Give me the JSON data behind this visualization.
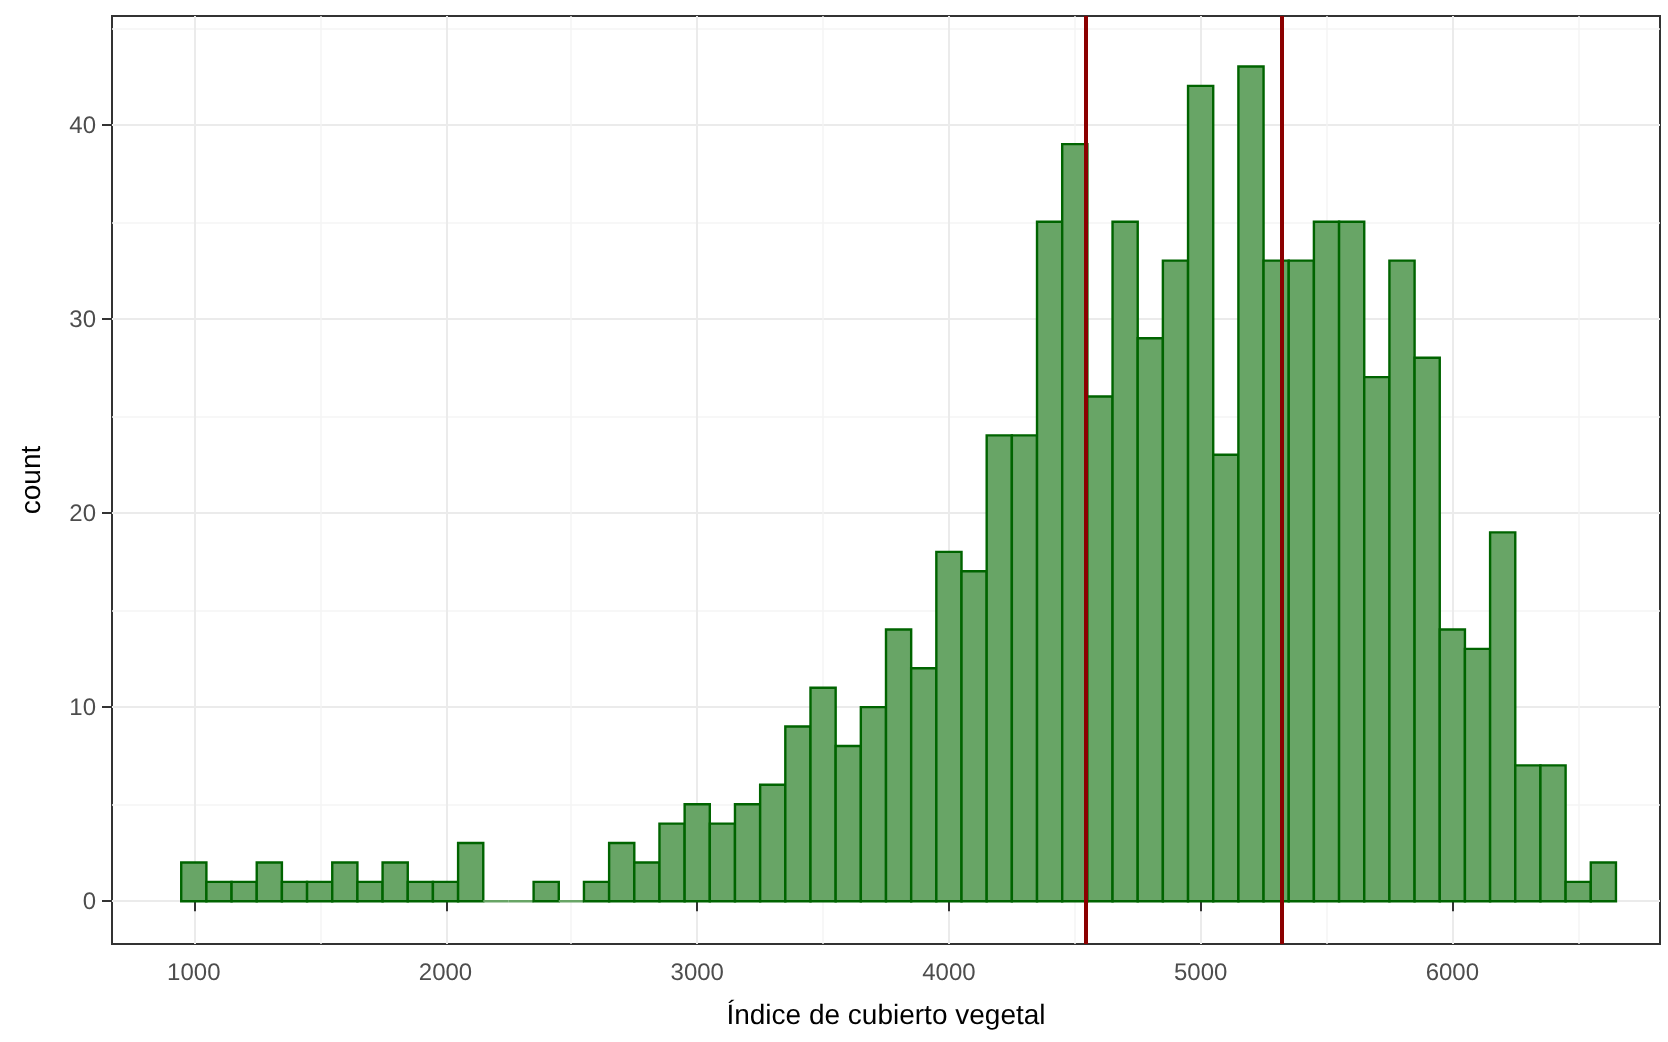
{
  "chart_data": {
    "type": "histogram",
    "xlabel": "Índice de cubierto vegetal",
    "ylabel": "count",
    "bins": [
      950,
      1050,
      1150,
      1250,
      1350,
      1450,
      1550,
      1650,
      1750,
      1850,
      1950,
      2050,
      2150,
      2250,
      2350,
      2450,
      2550,
      2650,
      2750,
      2850,
      2950,
      3050,
      3150,
      3250,
      3350,
      3450,
      3550,
      3650,
      3750,
      3850,
      3950,
      4050,
      4150,
      4250,
      4350,
      4450,
      4550,
      4650,
      4750,
      4850,
      4950,
      5050,
      5150,
      5250,
      5350,
      5450,
      5550,
      5650,
      5750,
      5850,
      5950,
      6050,
      6150,
      6250,
      6350,
      6450,
      6550,
      6650
    ],
    "values": [
      2,
      1,
      1,
      2,
      1,
      1,
      2,
      1,
      2,
      1,
      1,
      3,
      0,
      0,
      1,
      0,
      1,
      3,
      2,
      4,
      5,
      4,
      5,
      6,
      9,
      11,
      8,
      10,
      14,
      12,
      18,
      17,
      24,
      24,
      35,
      39,
      26,
      35,
      29,
      33,
      42,
      23,
      43,
      33,
      33,
      35,
      35,
      27,
      33,
      28,
      14,
      13,
      19,
      7,
      7,
      1,
      2
    ],
    "color": "#68a566",
    "xlim": [
      675,
      6825
    ],
    "xticks": [
      1000,
      2000,
      3000,
      4000,
      5000,
      6000
    ],
    "ylim": [
      -2.2,
      45.6
    ],
    "yticks": [
      0,
      10,
      20,
      30,
      40
    ],
    "grid": true,
    "ref_lines": [
      {
        "axis": "x",
        "value": 4540,
        "color": "#8b0000"
      },
      {
        "axis": "x",
        "value": 5325,
        "color": "#8b0000"
      }
    ]
  }
}
